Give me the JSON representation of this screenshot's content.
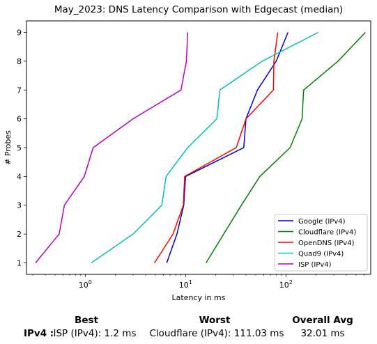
{
  "chart_data": {
    "type": "line",
    "title": "May_2023: DNS Latency Comparison with Edgecast (median)",
    "xlabel": "Latency in ms",
    "ylabel": "# Probes",
    "xscale": "log",
    "xlim": [
      0.26,
      700
    ],
    "ylim": [
      0.6,
      9.4
    ],
    "xticks": [
      {
        "value": 1,
        "base": "10",
        "exp": "0"
      },
      {
        "value": 10,
        "base": "10",
        "exp": "1"
      },
      {
        "value": 100,
        "base": "10",
        "exp": "2"
      }
    ],
    "yticks": [
      1,
      2,
      3,
      4,
      5,
      6,
      7,
      8,
      9
    ],
    "legend_position": "bottom-right",
    "grid": false,
    "series": [
      {
        "name": "Google (IPv4)",
        "color": "#0000cc",
        "points": [
          [
            6.5,
            1
          ],
          [
            8.2,
            2
          ],
          [
            9.6,
            3
          ],
          [
            10,
            4
          ],
          [
            38,
            5
          ],
          [
            40,
            6
          ],
          [
            52,
            7
          ],
          [
            80,
            8
          ],
          [
            105,
            9
          ]
        ]
      },
      {
        "name": "Cloudflare (IPv4)",
        "color": "#008000",
        "points": [
          [
            16,
            1
          ],
          [
            24,
            2
          ],
          [
            36,
            3
          ],
          [
            55,
            4
          ],
          [
            110,
            5
          ],
          [
            145,
            6
          ],
          [
            150,
            7
          ],
          [
            330,
            8
          ],
          [
            620,
            9
          ]
        ]
      },
      {
        "name": "OpenDNS (IPv4)",
        "color": "#ff0000",
        "points": [
          [
            4.9,
            1
          ],
          [
            7.5,
            2
          ],
          [
            9.5,
            3
          ],
          [
            9.8,
            4
          ],
          [
            32,
            5
          ],
          [
            40,
            6
          ],
          [
            75,
            7
          ],
          [
            76,
            8
          ],
          [
            83,
            9
          ]
        ]
      },
      {
        "name": "Quad9 (IPv4)",
        "color": "#00bfbf",
        "points": [
          [
            1.15,
            1
          ],
          [
            3,
            2
          ],
          [
            5.8,
            3
          ],
          [
            6.4,
            4
          ],
          [
            10.5,
            5
          ],
          [
            20.5,
            6
          ],
          [
            22,
            7
          ],
          [
            58,
            8
          ],
          [
            210,
            9
          ]
        ]
      },
      {
        "name": "ISP (IPv4)",
        "color": "#bf00bf",
        "points": [
          [
            0.32,
            1
          ],
          [
            0.55,
            2
          ],
          [
            0.62,
            3
          ],
          [
            0.98,
            4
          ],
          [
            1.2,
            5
          ],
          [
            3,
            6
          ],
          [
            9,
            7
          ],
          [
            10.2,
            8
          ],
          [
            10.5,
            9
          ]
        ]
      }
    ]
  },
  "summary": {
    "headers": {
      "best": "Best",
      "worst": "Worst",
      "overall": "Overall Avg"
    },
    "rows": [
      {
        "label": "IPv4 :",
        "best": "ISP (IPv4): 1.2 ms",
        "worst": "Cloudflare (IPv4): 111.03 ms",
        "overall": "32.01 ms"
      }
    ]
  }
}
